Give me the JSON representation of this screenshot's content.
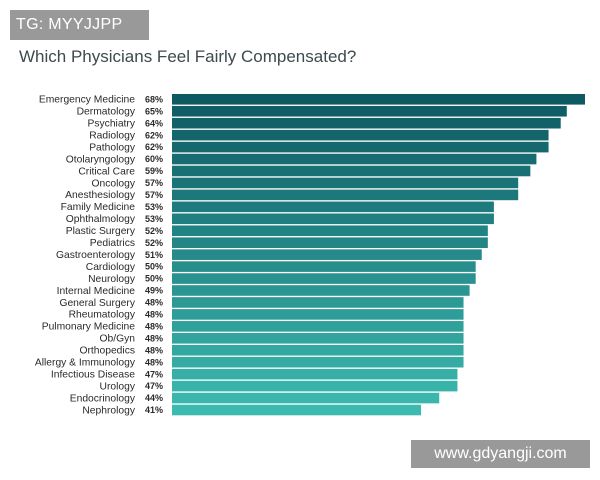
{
  "watermarks": {
    "top_left": "TG: MYYJJPP",
    "bottom_right": "www.gdyangji.com"
  },
  "colors": {
    "bar_start": "#0e5a62",
    "bar_end": "#3cbab0",
    "text": "#2a2a2a"
  },
  "chart_data": {
    "type": "bar",
    "orientation": "horizontal",
    "title": "Which Physicians Feel Fairly Compensated?",
    "xlabel": "",
    "ylabel": "",
    "value_suffix": "%",
    "xlim": [
      0,
      68
    ],
    "grid": false,
    "legend": "none",
    "categories": [
      "Emergency Medicine",
      "Dermatology",
      "Psychiatry",
      "Radiology",
      "Pathology",
      "Otolaryngology",
      "Critical Care",
      "Oncology",
      "Anesthesiology",
      "Family Medicine",
      "Ophthalmology",
      "Plastic Surgery",
      "Pediatrics",
      "Gastroenterology",
      "Cardiology",
      "Neurology",
      "Internal Medicine",
      "General Surgery",
      "Rheumatology",
      "Pulmonary Medicine",
      "Ob/Gyn",
      "Orthopedics",
      "Allergy & Immunology",
      "Infectious Disease",
      "Urology",
      "Endocrinology",
      "Nephrology"
    ],
    "values": [
      68,
      65,
      64,
      62,
      62,
      60,
      59,
      57,
      57,
      53,
      53,
      52,
      52,
      51,
      50,
      50,
      49,
      48,
      48,
      48,
      48,
      48,
      48,
      47,
      47,
      44,
      41
    ],
    "value_labels": [
      "68%",
      "65%",
      "64%",
      "62%",
      "62%",
      "60%",
      "59%",
      "57%",
      "57%",
      "53%",
      "53%",
      "52%",
      "52%",
      "51%",
      "50%",
      "50%",
      "49%",
      "48%",
      "48%",
      "48%",
      "48%",
      "48%",
      "48%",
      "47%",
      "47%",
      "44%",
      "41%"
    ]
  }
}
